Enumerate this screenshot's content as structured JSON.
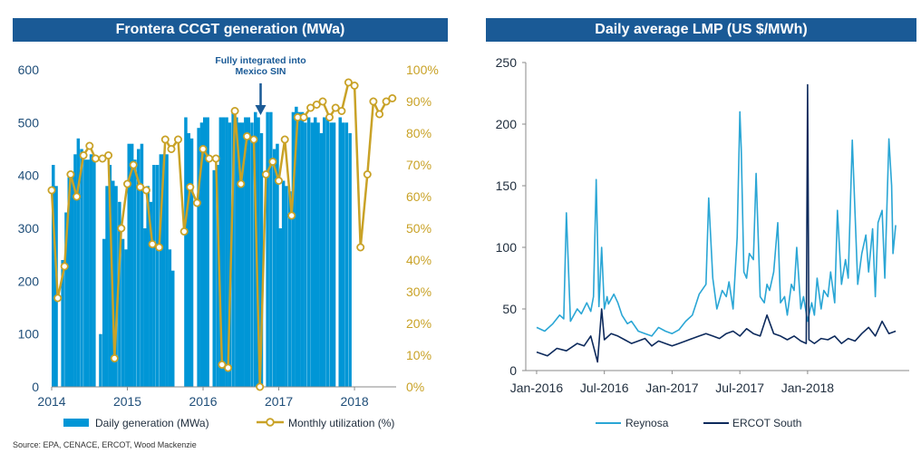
{
  "source": "Source: EPA, CENACE, ERCOT, Wood Mackenzie",
  "colors": {
    "navy": "#1a5a96",
    "gen_fill": "#0096d6",
    "gold": "#c9a227",
    "reynosa": "#2aa6d5",
    "ercot": "#0d2a5c"
  },
  "chart_data": [
    {
      "type": "bar",
      "title": "Frontera CCGT generation (MWa)",
      "annotation": "Fully integrated into Mexico SIN",
      "annotation_lines": [
        "Fully integrated into",
        "Mexico SIN"
      ],
      "annotation_x": 2016.76,
      "ylim": [
        0,
        600
      ],
      "y_ticks": [
        0,
        100,
        200,
        300,
        400,
        500,
        600
      ],
      "y2lim": [
        0,
        100
      ],
      "y2_ticks": [
        "0%",
        "10%",
        "20%",
        "30%",
        "40%",
        "50%",
        "60%",
        "70%",
        "80%",
        "90%",
        "100%"
      ],
      "xlim": [
        2014.0,
        2018.55
      ],
      "x_ticks": [
        "2014",
        "2015",
        "2016",
        "2017",
        "2018"
      ],
      "legend": [
        "Daily generation (MWa)",
        "Monthly utilization (%)"
      ],
      "series": [
        {
          "name": "Daily generation (MWa)",
          "axis": "left",
          "x": [
            2014.0,
            2014.04,
            2014.08,
            2014.125,
            2014.17,
            2014.21,
            2014.25,
            2014.29,
            2014.33,
            2014.375,
            2014.42,
            2014.46,
            2014.5,
            2014.54,
            2014.58,
            2014.625,
            2014.67,
            2014.71,
            2014.75,
            2014.79,
            2014.83,
            2014.875,
            2014.92,
            2014.96,
            2015.0,
            2015.04,
            2015.08,
            2015.125,
            2015.17,
            2015.21,
            2015.25,
            2015.29,
            2015.33,
            2015.375,
            2015.42,
            2015.46,
            2015.5,
            2015.54,
            2015.58,
            2015.625,
            2015.67,
            2015.71,
            2015.75,
            2015.79,
            2015.83,
            2015.875,
            2015.92,
            2015.96,
            2016.0,
            2016.04,
            2016.08,
            2016.125,
            2016.17,
            2016.21,
            2016.25,
            2016.29,
            2016.33,
            2016.375,
            2016.42,
            2016.46,
            2016.5,
            2016.54,
            2016.58,
            2016.625,
            2016.67,
            2016.71,
            2016.75,
            2016.79,
            2016.83,
            2016.875,
            2016.92,
            2016.96,
            2017.0,
            2017.04,
            2017.08,
            2017.125,
            2017.17,
            2017.21,
            2017.25,
            2017.29,
            2017.33,
            2017.375,
            2017.42,
            2017.46,
            2017.5,
            2017.54,
            2017.58,
            2017.625,
            2017.67,
            2017.71,
            2017.75,
            2017.79,
            2017.83,
            2017.875,
            2017.92,
            2017.96,
            2018.0,
            2018.04,
            2018.08,
            2018.125,
            2018.17,
            2018.21,
            2018.25,
            2018.29,
            2018.33,
            2018.375,
            2018.42,
            2018.46,
            2018.5
          ],
          "values": [
            420,
            380,
            0,
            240,
            330,
            405,
            400,
            440,
            470,
            450,
            430,
            430,
            440,
            430,
            0,
            100,
            280,
            380,
            420,
            390,
            380,
            350,
            280,
            260,
            460,
            460,
            430,
            450,
            460,
            300,
            380,
            350,
            420,
            420,
            440,
            440,
            440,
            260,
            220,
            0,
            0,
            0,
            510,
            480,
            470,
            0,
            490,
            500,
            510,
            510,
            0,
            410,
            420,
            510,
            510,
            510,
            500,
            520,
            510,
            500,
            500,
            510,
            510,
            500,
            520,
            510,
            480,
            0,
            520,
            520,
            450,
            460,
            300,
            390,
            380,
            370,
            520,
            530,
            520,
            520,
            500,
            510,
            500,
            510,
            500,
            480,
            510,
            510,
            500,
            500,
            0,
            510,
            500,
            500,
            480,
            0,
            0,
            0,
            0,
            0,
            0,
            0,
            0,
            0,
            0,
            0,
            0,
            0,
            0
          ]
        },
        {
          "name": "Monthly utilization (%)",
          "axis": "right",
          "x": [
            2014.0,
            2014.08,
            2014.17,
            2014.25,
            2014.33,
            2014.42,
            2014.5,
            2014.58,
            2014.67,
            2014.75,
            2014.83,
            2014.92,
            2015.0,
            2015.08,
            2015.17,
            2015.25,
            2015.33,
            2015.42,
            2015.5,
            2015.58,
            2015.67,
            2015.75,
            2015.83,
            2015.92,
            2016.0,
            2016.08,
            2016.17,
            2016.25,
            2016.33,
            2016.42,
            2016.5,
            2016.58,
            2016.67,
            2016.75,
            2016.83,
            2016.92,
            2017.0,
            2017.08,
            2017.17,
            2017.25,
            2017.33,
            2017.42,
            2017.5,
            2017.58,
            2017.67,
            2017.75,
            2017.83,
            2017.92,
            2018.0,
            2018.08,
            2018.17,
            2018.25,
            2018.33,
            2018.42,
            2018.5
          ],
          "values": [
            62,
            28,
            38,
            67,
            60,
            73,
            76,
            72,
            72,
            73,
            9,
            50,
            64,
            70,
            63,
            62,
            45,
            44,
            78,
            75,
            78,
            49,
            63,
            58,
            75,
            72,
            72,
            7,
            6,
            87,
            64,
            79,
            78,
            0,
            67,
            71,
            65,
            78,
            54,
            85,
            85,
            88,
            89,
            90,
            85,
            88,
            87,
            96,
            95,
            44,
            67,
            90,
            86,
            90,
            91
          ]
        }
      ]
    },
    {
      "type": "line",
      "title": "Daily average LMP (US $/MWh)",
      "ylim": [
        0,
        250
      ],
      "y_ticks": [
        0,
        50,
        100,
        150,
        200,
        250
      ],
      "xlim": [
        2015.92,
        2018.75
      ],
      "x_ticks": [
        "Jan-2016",
        "Jul-2016",
        "Jan-2017",
        "Jul-2017",
        "Jan-2018"
      ],
      "x_tick_pos": [
        2016.0,
        2016.5,
        2017.0,
        2017.5,
        2018.0
      ],
      "legend": [
        "Reynosa",
        "ERCOT South"
      ],
      "series": [
        {
          "name": "Reynosa",
          "x": [
            2016.0,
            2016.06,
            2016.12,
            2016.17,
            2016.2,
            2016.22,
            2016.25,
            2016.3,
            2016.33,
            2016.37,
            2016.4,
            2016.42,
            2016.44,
            2016.46,
            2016.48,
            2016.5,
            2016.52,
            2016.53,
            2016.55,
            2016.57,
            2016.6,
            2016.63,
            2016.67,
            2016.7,
            2016.75,
            2016.8,
            2016.85,
            2016.9,
            2016.95,
            2017.0,
            2017.05,
            2017.1,
            2017.15,
            2017.2,
            2017.25,
            2017.27,
            2017.3,
            2017.33,
            2017.37,
            2017.4,
            2017.42,
            2017.45,
            2017.48,
            2017.5,
            2017.51,
            2017.53,
            2017.55,
            2017.57,
            2017.6,
            2017.62,
            2017.65,
            2017.68,
            2017.7,
            2017.72,
            2017.75,
            2017.78,
            2017.8,
            2017.83,
            2017.85,
            2017.88,
            2017.9,
            2017.92,
            2017.95,
            2017.97,
            2018.0,
            2018.03,
            2018.05,
            2018.07,
            2018.1,
            2018.12,
            2018.15,
            2018.17,
            2018.2,
            2018.22,
            2018.25,
            2018.28,
            2018.3,
            2018.33,
            2018.37,
            2018.4,
            2018.43,
            2018.45,
            2018.48,
            2018.5,
            2018.52,
            2018.55,
            2018.57,
            2018.6,
            2018.62,
            2018.63,
            2018.65
          ],
          "values": [
            35,
            32,
            38,
            45,
            42,
            128,
            40,
            50,
            46,
            55,
            48,
            60,
            155,
            52,
            100,
            50,
            60,
            54,
            58,
            62,
            55,
            45,
            38,
            40,
            32,
            30,
            28,
            35,
            32,
            30,
            33,
            40,
            45,
            62,
            70,
            140,
            75,
            50,
            65,
            60,
            72,
            50,
            108,
            210,
            180,
            80,
            75,
            95,
            90,
            160,
            60,
            55,
            70,
            65,
            80,
            120,
            55,
            60,
            45,
            70,
            65,
            100,
            50,
            60,
            40,
            55,
            45,
            75,
            50,
            65,
            60,
            80,
            55,
            130,
            70,
            90,
            75,
            187,
            70,
            95,
            110,
            80,
            115,
            60,
            120,
            130,
            75,
            188,
            150,
            95,
            118
          ]
        },
        {
          "name": "ERCOT South",
          "x": [
            2016.0,
            2016.08,
            2016.15,
            2016.22,
            2016.3,
            2016.35,
            2016.4,
            2016.45,
            2016.48,
            2016.5,
            2016.55,
            2016.6,
            2016.65,
            2016.7,
            2016.75,
            2016.8,
            2016.85,
            2016.9,
            2016.95,
            2017.0,
            2017.05,
            2017.1,
            2017.15,
            2017.2,
            2017.25,
            2017.3,
            2017.35,
            2017.4,
            2017.45,
            2017.5,
            2017.55,
            2017.6,
            2017.65,
            2017.7,
            2017.75,
            2017.8,
            2017.85,
            2017.9,
            2017.95,
            2017.99,
            2018.0,
            2018.01,
            2018.05,
            2018.1,
            2018.15,
            2018.2,
            2018.25,
            2018.3,
            2018.35,
            2018.4,
            2018.45,
            2018.5,
            2018.55,
            2018.6,
            2018.65
          ],
          "values": [
            15,
            12,
            18,
            16,
            22,
            20,
            28,
            7,
            50,
            25,
            30,
            28,
            25,
            22,
            24,
            26,
            20,
            24,
            22,
            20,
            22,
            24,
            26,
            28,
            30,
            28,
            26,
            30,
            32,
            28,
            34,
            30,
            28,
            45,
            30,
            28,
            25,
            28,
            24,
            22,
            232,
            25,
            22,
            26,
            25,
            28,
            22,
            26,
            24,
            30,
            35,
            28,
            40,
            30,
            32
          ]
        }
      ]
    }
  ]
}
